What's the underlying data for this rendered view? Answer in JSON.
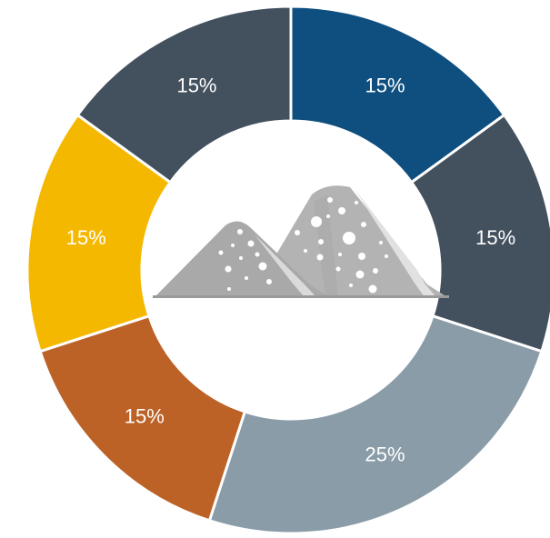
{
  "chart_data": {
    "type": "pie",
    "variant": "donut",
    "slices": [
      {
        "label": "15%",
        "value": 15,
        "color": "#0E4F80"
      },
      {
        "label": "15%",
        "value": 15,
        "color": "#43505E"
      },
      {
        "label": "25%",
        "value": 25,
        "color": "#8A9CA8"
      },
      {
        "label": "15%",
        "value": 15,
        "color": "#BC6226"
      },
      {
        "label": "15%",
        "value": 15,
        "color": "#F5B800"
      },
      {
        "label": "15%",
        "value": 15,
        "color": "#43505E"
      }
    ],
    "start": "12 o'clock",
    "direction": "clockwise",
    "center_icon": "rock-pile-icon",
    "center_icon_color": "#B3B3B3"
  }
}
